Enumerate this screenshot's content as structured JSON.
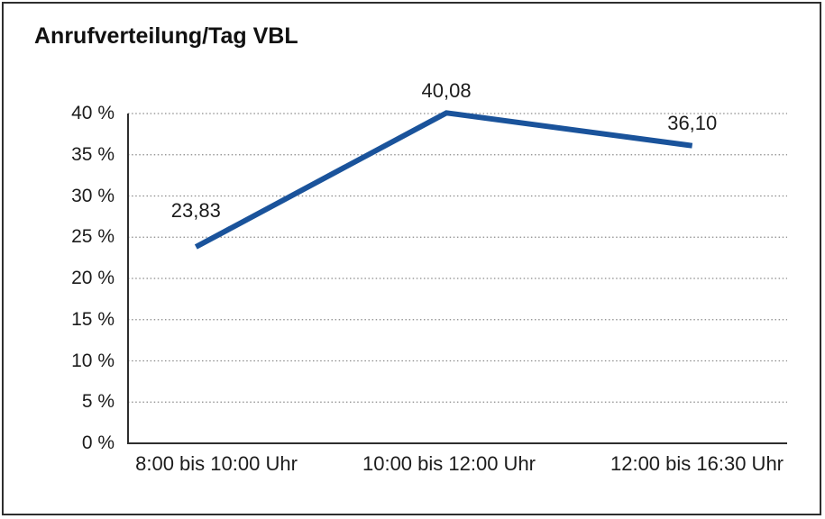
{
  "chart_data": {
    "type": "line",
    "title": "Anrufverteilung/Tag VBL",
    "categories": [
      "8:00 bis 10:00 Uhr",
      "10:00 bis 12:00 Uhr",
      "12:00 bis 16:30 Uhr"
    ],
    "values": [
      23.83,
      40.08,
      36.1
    ],
    "data_labels": [
      "23,83",
      "40,08",
      "36,10"
    ],
    "ytick_labels": [
      "0 %",
      "5 %",
      "10 %",
      "15 %",
      "20 %",
      "25 %",
      "30 %",
      "35 %",
      "40 %"
    ],
    "ylim": [
      0,
      40
    ],
    "ytick_step": 5,
    "xlabel": "",
    "ylabel": "",
    "grid": "horizontal-dotted",
    "legend_position": "none",
    "line_color": "#1a539b",
    "axis_color": "#2e2e2e",
    "grid_color": "#8a8a8a",
    "frame_border_color": "#2e2e2e",
    "background_color": "#ffffff"
  }
}
